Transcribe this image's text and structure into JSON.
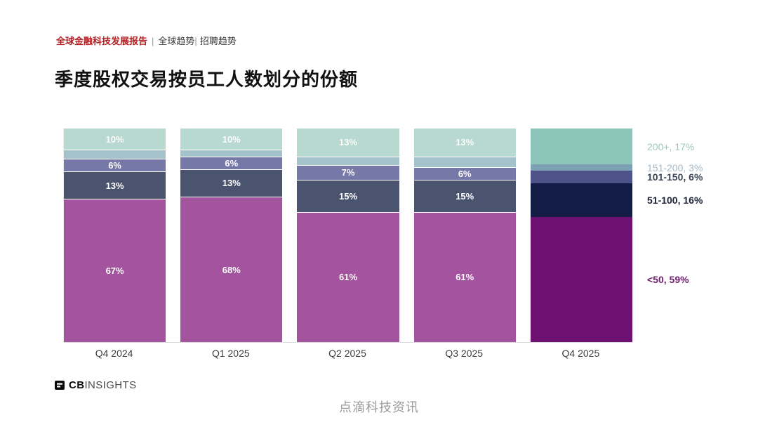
{
  "header": {
    "eyebrow": {
      "report": "全球金融科技发展报告",
      "separator1": "|",
      "tab1": "全球趋势",
      "separator2": "|",
      "tab2": "招聘趋势",
      "report_color": "#b22024"
    },
    "title": "季度股权交易按员工人数划分的份额"
  },
  "chart_data": {
    "type": "bar",
    "stacked": true,
    "orientation": "vertical",
    "unit": "%",
    "grid": false,
    "legend_position": "right",
    "title": "季度股权交易按员工人数划分的份额",
    "xlabel": "",
    "ylabel": "",
    "categories": [
      "Q4 2024",
      "Q1 2025",
      "Q2 2025",
      "Q3 2025",
      "Q4 2025"
    ],
    "highlight_category": "Q4 2025",
    "series": [
      {
        "name": "200+",
        "values": [
          10,
          10,
          13,
          13,
          17
        ],
        "labels": [
          "10%",
          "10%",
          "13%",
          "13%",
          ""
        ],
        "color": "#b7d9d0",
        "highlight_color": "#8ec5bb",
        "legend": "200+, 17%",
        "legend_color": "#9cc8bd",
        "legend_bold": false
      },
      {
        "name": "151-200",
        "values": [
          4,
          3,
          4,
          5,
          3
        ],
        "labels": [
          "",
          "",
          "",
          "",
          ""
        ],
        "color": "#a3c2c9",
        "highlight_color": "#7ba1b3",
        "legend": "151-200, 3%",
        "legend_color": "#a6b9c6",
        "legend_bold": false
      },
      {
        "name": "101-150",
        "values": [
          6,
          6,
          7,
          6,
          6
        ],
        "labels": [
          "6%",
          "6%",
          "7%",
          "6%",
          ""
        ],
        "color": "#7679a7",
        "highlight_color": "#4d5289",
        "legend": "101-150, 6%",
        "legend_color": "#3c4656",
        "legend_bold": true
      },
      {
        "name": "51-100",
        "values": [
          13,
          13,
          15,
          15,
          16
        ],
        "labels": [
          "13%",
          "13%",
          "15%",
          "15%",
          ""
        ],
        "color": "#4a546f",
        "highlight_color": "#131c44",
        "legend": "51-100, 16%",
        "legend_color": "#1c2337",
        "legend_bold": true
      },
      {
        "name": "<50",
        "values": [
          67,
          68,
          61,
          61,
          59
        ],
        "labels": [
          "67%",
          "68%",
          "61%",
          "61%",
          ""
        ],
        "color": "#a4549e",
        "highlight_color": "#6e1173",
        "legend": "<50, 59%",
        "legend_color": "#712070",
        "legend_bold": true
      }
    ]
  },
  "footer": {
    "logo_cb": "CB",
    "logo_insights": "INSIGHTS",
    "watermark": "点滴科技资讯"
  }
}
